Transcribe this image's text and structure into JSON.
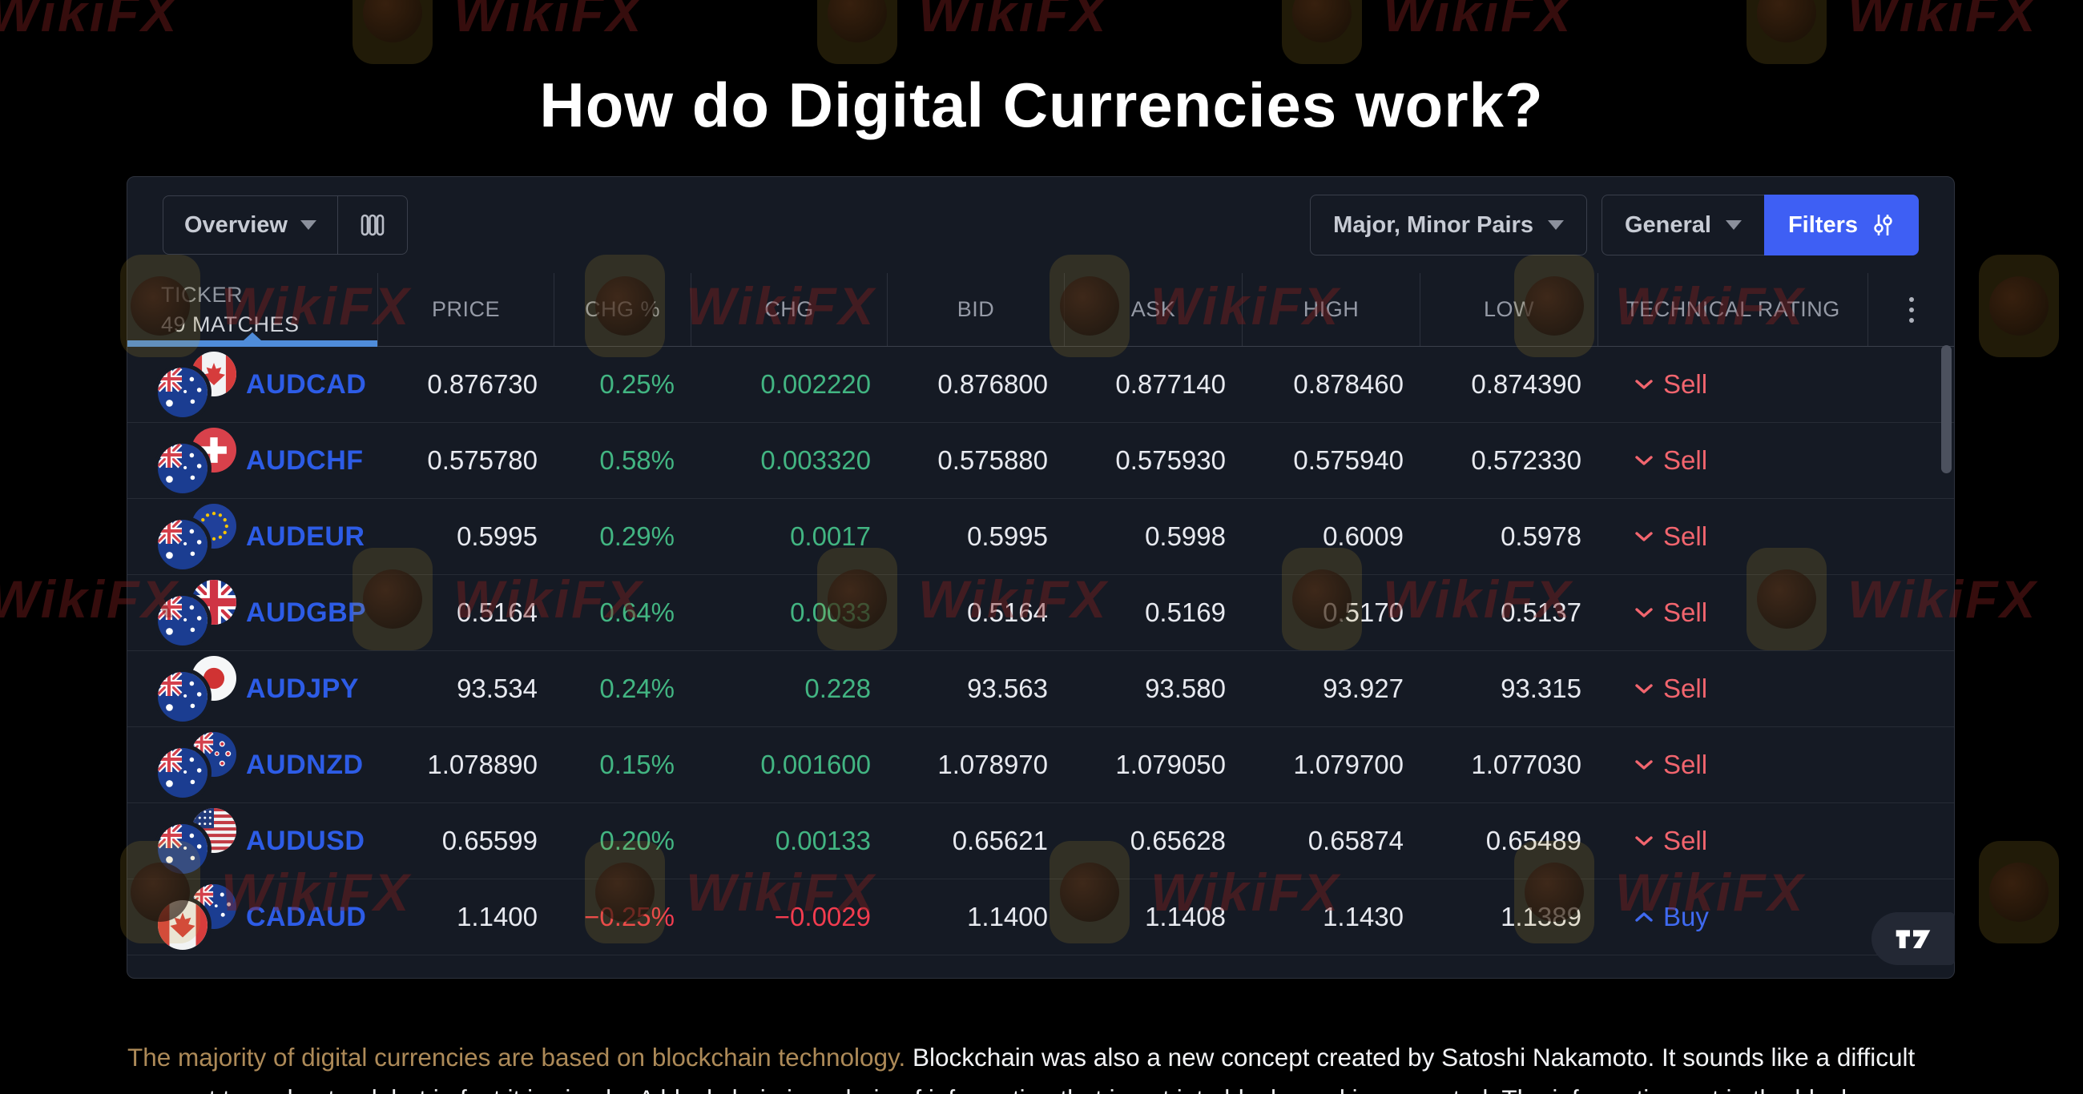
{
  "page": {
    "title": "How do Digital Currencies work?",
    "watermark_text": "WikiFX",
    "paragraph_highlight": "The majority of digital currencies are based on blockchain technology.",
    "paragraph_rest": " Blockchain was also a new concept created by Satoshi Nakamoto. It sounds like a difficult concept to understand, but in fact it is simple. A blockchain is a chain of information that is put into blocks and is encrypted. The information put in the block"
  },
  "toolbar": {
    "view_label": "Overview",
    "columns_icon": "columns-layout-icon",
    "pairs_label": "Major, Minor Pairs",
    "category_label": "General",
    "filters_label": "Filters"
  },
  "table": {
    "ticker_header": "TICKER",
    "matches_label": "49 MATCHES",
    "columns": [
      "PRICE",
      "CHG %",
      "CHG",
      "BID",
      "ASK",
      "HIGH",
      "LOW",
      "TECHNICAL RATING"
    ],
    "rows": [
      {
        "ticker": "AUDCAD",
        "base": "AUD",
        "quote": "CAD",
        "price": "0.876730",
        "chg_pct": "0.25%",
        "chg": "0.002220",
        "bid": "0.876800",
        "ask": "0.877140",
        "high": "0.878460",
        "low": "0.874390",
        "trend": "up",
        "rating": "Sell",
        "rating_dir": "down"
      },
      {
        "ticker": "AUDCHF",
        "base": "AUD",
        "quote": "CHF",
        "price": "0.575780",
        "chg_pct": "0.58%",
        "chg": "0.003320",
        "bid": "0.575880",
        "ask": "0.575930",
        "high": "0.575940",
        "low": "0.572330",
        "trend": "up",
        "rating": "Sell",
        "rating_dir": "down"
      },
      {
        "ticker": "AUDEUR",
        "base": "AUD",
        "quote": "EUR",
        "price": "0.5995",
        "chg_pct": "0.29%",
        "chg": "0.0017",
        "bid": "0.5995",
        "ask": "0.5998",
        "high": "0.6009",
        "low": "0.5978",
        "trend": "up",
        "rating": "Sell",
        "rating_dir": "down"
      },
      {
        "ticker": "AUDGBP",
        "base": "AUD",
        "quote": "GBP",
        "price": "0.5164",
        "chg_pct": "0.64%",
        "chg": "0.0033",
        "bid": "0.5164",
        "ask": "0.5169",
        "high": "0.5170",
        "low": "0.5137",
        "trend": "up",
        "rating": "Sell",
        "rating_dir": "down"
      },
      {
        "ticker": "AUDJPY",
        "base": "AUD",
        "quote": "JPY",
        "price": "93.534",
        "chg_pct": "0.24%",
        "chg": "0.228",
        "bid": "93.563",
        "ask": "93.580",
        "high": "93.927",
        "low": "93.315",
        "trend": "up",
        "rating": "Sell",
        "rating_dir": "down"
      },
      {
        "ticker": "AUDNZD",
        "base": "AUD",
        "quote": "NZD",
        "price": "1.078890",
        "chg_pct": "0.15%",
        "chg": "0.001600",
        "bid": "1.078970",
        "ask": "1.079050",
        "high": "1.079700",
        "low": "1.077030",
        "trend": "up",
        "rating": "Sell",
        "rating_dir": "down"
      },
      {
        "ticker": "AUDUSD",
        "base": "AUD",
        "quote": "USD",
        "price": "0.65599",
        "chg_pct": "0.20%",
        "chg": "0.00133",
        "bid": "0.65621",
        "ask": "0.65628",
        "high": "0.65874",
        "low": "0.65489",
        "trend": "up",
        "rating": "Sell",
        "rating_dir": "down"
      },
      {
        "ticker": "CADAUD",
        "base": "CAD",
        "quote": "AUD",
        "price": "1.1400",
        "chg_pct": "−0.25%",
        "chg": "−0.0029",
        "bid": "1.1400",
        "ask": "1.1408",
        "high": "1.1430",
        "low": "1.1389",
        "trend": "down",
        "rating": "Buy",
        "rating_dir": "up"
      }
    ]
  },
  "attribution": {
    "logo": "tradingview-logo"
  },
  "colors": {
    "panel_bg": "#151a24",
    "accent_blue": "#3e5ff4",
    "ticker_blue": "#2d5ce6",
    "positive_green": "#42b582",
    "negative_red": "#f23c4f",
    "sell_pink": "#f2656e",
    "buy_blue": "#3f6af0",
    "header_underline": "#4f8cd9",
    "highlight_gold": "#ad8a58"
  }
}
